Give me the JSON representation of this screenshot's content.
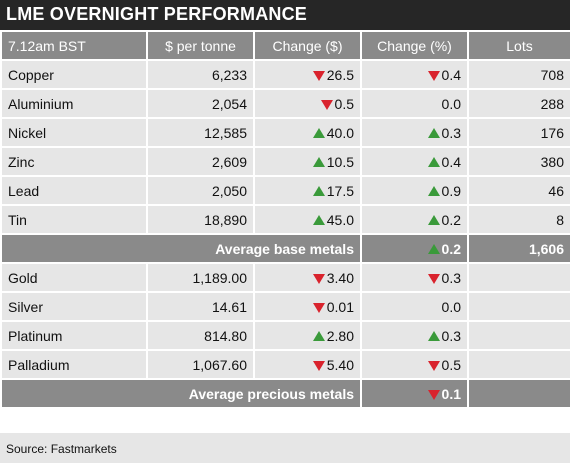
{
  "title": "LME OVERNIGHT PERFORMANCE",
  "colors": {
    "up": "#3a9a3a",
    "down": "#d9232d",
    "header_bg": "#8a8a8a",
    "title_bg": "#262626"
  },
  "headers": [
    "7.12am BST",
    "$ per tonne",
    "Change ($)",
    "Change (%)",
    "Lots"
  ],
  "base_metals": [
    {
      "name": "Copper",
      "price": "6,233",
      "change_usd": "26.5",
      "usd_dir": "down",
      "change_pct": "0.4",
      "pct_dir": "down",
      "lots": "708"
    },
    {
      "name": "Aluminium",
      "price": "2,054",
      "change_usd": "0.5",
      "usd_dir": "down",
      "change_pct": "0.0",
      "pct_dir": "none",
      "lots": "288"
    },
    {
      "name": "Nickel",
      "price": "12,585",
      "change_usd": "40.0",
      "usd_dir": "up",
      "change_pct": "0.3",
      "pct_dir": "up",
      "lots": "176"
    },
    {
      "name": "Zinc",
      "price": "2,609",
      "change_usd": "10.5",
      "usd_dir": "up",
      "change_pct": "0.4",
      "pct_dir": "up",
      "lots": "380"
    },
    {
      "name": "Lead",
      "price": "2,050",
      "change_usd": "17.5",
      "usd_dir": "up",
      "change_pct": "0.9",
      "pct_dir": "up",
      "lots": "46"
    },
    {
      "name": "Tin",
      "price": "18,890",
      "change_usd": "45.0",
      "usd_dir": "up",
      "change_pct": "0.2",
      "pct_dir": "up",
      "lots": "8"
    }
  ],
  "base_average": {
    "label": "Average base metals",
    "change_pct": "0.2",
    "pct_dir": "up",
    "lots": "1,606"
  },
  "precious_metals": [
    {
      "name": "Gold",
      "price": "1,189.00",
      "change_usd": "3.40",
      "usd_dir": "down",
      "change_pct": "0.3",
      "pct_dir": "down",
      "lots": ""
    },
    {
      "name": "Silver",
      "price": "14.61",
      "change_usd": "0.01",
      "usd_dir": "down",
      "change_pct": "0.0",
      "pct_dir": "none",
      "lots": ""
    },
    {
      "name": "Platinum",
      "price": "814.80",
      "change_usd": "2.80",
      "usd_dir": "up",
      "change_pct": "0.3",
      "pct_dir": "up",
      "lots": ""
    },
    {
      "name": "Palladium",
      "price": "1,067.60",
      "change_usd": "5.40",
      "usd_dir": "down",
      "change_pct": "0.5",
      "pct_dir": "down",
      "lots": ""
    }
  ],
  "precious_average": {
    "label": "Average precious metals",
    "change_pct": "0.1",
    "pct_dir": "down",
    "lots": ""
  },
  "source": "Source: Fastmarkets"
}
